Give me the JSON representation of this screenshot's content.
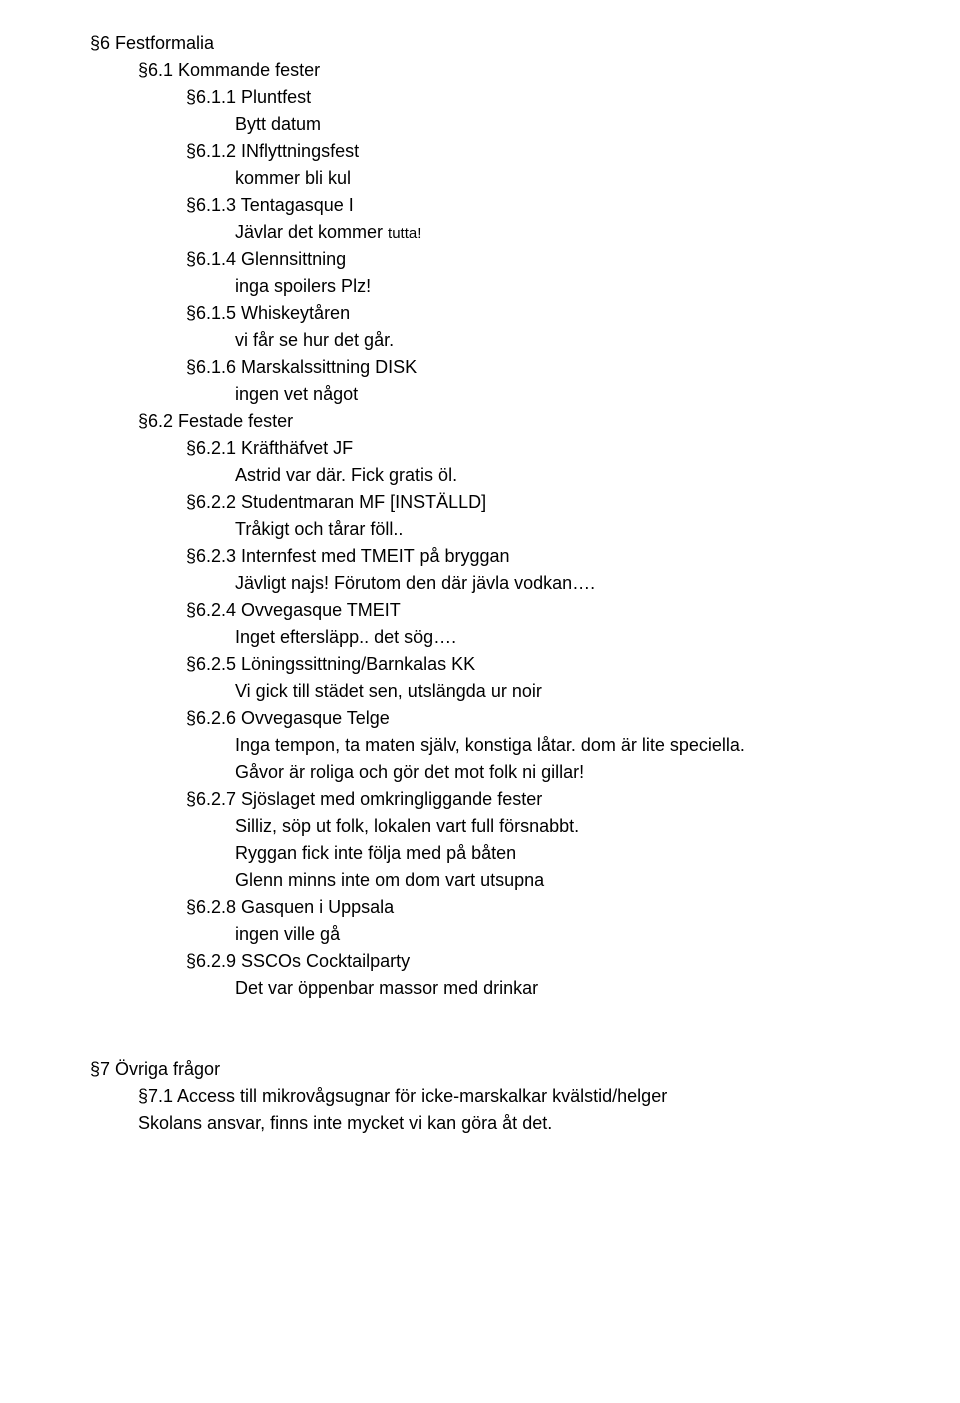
{
  "sec6": {
    "title": "§6 Festformalia",
    "s61": {
      "title": "§6.1 Kommande fester",
      "items": [
        {
          "num": "§6.1.1 Pluntfest",
          "body": "Bytt datum"
        },
        {
          "num": "§6.1.2 INflyttningsfest",
          "body": "kommer bli kul"
        },
        {
          "num": "§6.1.3 Tentagasque I",
          "body": "Jävlar det kommer ",
          "body_small": "tutta!"
        },
        {
          "num": "§6.1.4 Glennsittning",
          "body": "inga spoilers Plz!"
        },
        {
          "num": "§6.1.5 Whiskeytåren",
          "body": "vi får se hur det går."
        },
        {
          "num": "§6.1.6 Marskalssittning DISK",
          "body": "ingen vet något"
        }
      ]
    },
    "s62": {
      "title": "§6.2 Festade fester",
      "items": [
        {
          "num": "§6.2.1 Kräfthäfvet JF",
          "body": [
            "Astrid var där. Fick gratis öl."
          ]
        },
        {
          "num": "§6.2.2 Studentmaran MF [INSTÄLLD]",
          "body": [
            "Tråkigt och tårar föll.."
          ]
        },
        {
          "num": "§6.2.3 Internfest med TMEIT på bryggan",
          "body": [
            "Jävligt najs! Förutom den där jävla vodkan…."
          ]
        },
        {
          "num": "§6.2.4 Ovvegasque TMEIT",
          "body": [
            "Inget eftersläpp.. det sög…."
          ]
        },
        {
          "num": "§6.2.5 Löningssittning/Barnkalas KK",
          "body": [
            "Vi gick till städet sen, utslängda ur noir"
          ]
        },
        {
          "num": "§6.2.6 Ovvegasque Telge",
          "body": [
            "Inga tempon, ta maten själv, konstiga låtar. dom är lite speciella.",
            "Gåvor är roliga och gör det mot folk ni gillar!"
          ]
        },
        {
          "num": "§6.2.7 Sjöslaget med omkringliggande fester",
          "body": [
            "Silliz, söp ut folk, lokalen vart full försnabbt.",
            "Ryggan fick inte följa med på båten",
            "Glenn minns inte om dom vart utsupna"
          ]
        },
        {
          "num": "§6.2.8 Gasquen i Uppsala",
          "body": [
            "ingen ville gå"
          ]
        },
        {
          "num": "§6.2.9 SSCOs Cocktailparty",
          "body": [
            "Det var öppenbar massor med drinkar"
          ]
        }
      ]
    }
  },
  "sec7": {
    "title": "§7 Övriga frågor",
    "s71": {
      "title": "§7.1 Access till mikrovågsugnar för icke-marskalkar kvälstid/helger",
      "body": "Skolans ansvar, finns inte mycket vi kan göra åt det."
    }
  }
}
